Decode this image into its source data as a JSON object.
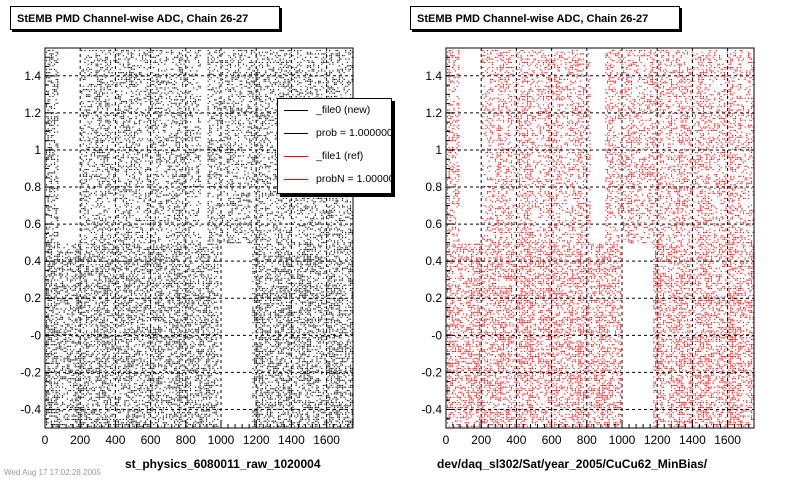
{
  "chart_data": [
    {
      "type": "scatter",
      "title": "StEMB PMD Channel-wise ADC, Chain 26-27",
      "xlabel": "st_physics_6080011_raw_1020004",
      "ylabel": "",
      "xlim": [
        0,
        1750
      ],
      "ylim": [
        -0.5,
        1.55
      ],
      "x_ticks": [
        "0",
        "200",
        "400",
        "600",
        "800",
        "1000",
        "1200",
        "1400",
        "1600"
      ],
      "y_ticks": [
        "-0.4",
        "-0.2",
        "-0",
        "0.2",
        "0.4",
        "0.6",
        "0.8",
        "1",
        "1.2",
        "1.4"
      ],
      "grid": true,
      "series": [
        {
          "name": "_file0 (new)",
          "color": "#000000",
          "empty_regions": [
            {
              "x": [
                70,
                200
              ],
              "y": [
                0.5,
                1.55
              ]
            },
            {
              "x": [
                880,
                920
              ],
              "y": [
                0.5,
                1.55
              ]
            },
            {
              "x": [
                985,
                1170
              ],
              "y": [
                -0.5,
                0.5
              ]
            }
          ]
        }
      ]
    },
    {
      "type": "scatter",
      "title": "StEMB PMD Channel-wise ADC, Chain 26-27",
      "xlabel": "dev/daq_sl302/Sat/year_2005/CuCu62_MinBias/",
      "ylabel": "",
      "xlim": [
        0,
        1750
      ],
      "ylim": [
        -0.5,
        1.55
      ],
      "x_ticks": [
        "0",
        "200",
        "400",
        "600",
        "800",
        "1000",
        "1200",
        "1400",
        "1600"
      ],
      "y_ticks": [
        "-0.4",
        "-0.2",
        "-0",
        "0.2",
        "0.4",
        "0.6",
        "0.8",
        "1",
        "1.2",
        "1.4"
      ],
      "grid": true,
      "series": [
        {
          "name": "_file1 (ref)",
          "color": "#ff0000",
          "empty_regions": [
            {
              "x": [
                70,
                200
              ],
              "y": [
                0.5,
                1.55
              ]
            },
            {
              "x": [
                820,
                900
              ],
              "y": [
                0.5,
                1.55
              ]
            },
            {
              "x": [
                990,
                1170
              ],
              "y": [
                -0.5,
                0.5
              ]
            }
          ]
        }
      ]
    }
  ],
  "legend": {
    "placement": "top-right of left panel",
    "entries": [
      {
        "label": "_file0 (new)",
        "color": "#000000"
      },
      {
        "label": "prob = 1.000000",
        "color": "#000000"
      },
      {
        "label": "_file1 (ref)",
        "color": "#ff0000"
      },
      {
        "label": "probN = 1.000000",
        "color": "#ff0000"
      }
    ]
  },
  "footer_text": "Wed Aug 17 17:02:28 2005"
}
